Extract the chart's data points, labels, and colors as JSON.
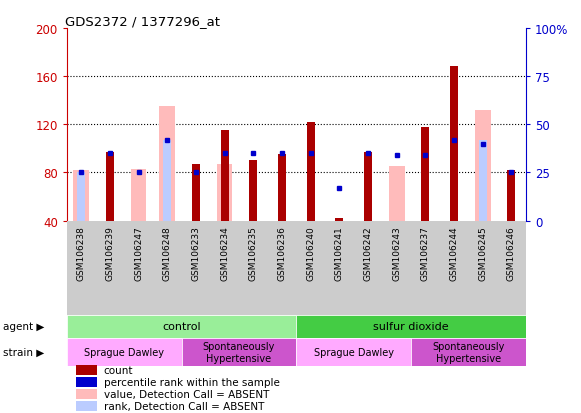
{
  "title": "GDS2372 / 1377296_at",
  "samples": [
    "GSM106238",
    "GSM106239",
    "GSM106247",
    "GSM106248",
    "GSM106233",
    "GSM106234",
    "GSM106235",
    "GSM106236",
    "GSM106240",
    "GSM106241",
    "GSM106242",
    "GSM106243",
    "GSM106237",
    "GSM106244",
    "GSM106245",
    "GSM106246"
  ],
  "count_values": [
    null,
    97,
    null,
    null,
    87,
    115,
    90,
    95,
    122,
    42,
    97,
    null,
    118,
    168,
    null,
    82
  ],
  "absent_values": [
    82,
    null,
    83,
    135,
    null,
    87,
    null,
    null,
    null,
    null,
    null,
    85,
    null,
    null,
    132,
    null
  ],
  "percentile_values": [
    25,
    35,
    25,
    42,
    25,
    35,
    35,
    35,
    35,
    17,
    35,
    34,
    34,
    42,
    40,
    25
  ],
  "absent_rank_values": [
    25,
    null,
    null,
    42,
    null,
    null,
    null,
    null,
    null,
    null,
    null,
    null,
    null,
    null,
    42,
    null
  ],
  "ylim_left": [
    40,
    200
  ],
  "ylim_right": [
    0,
    100
  ],
  "yticks_left": [
    40,
    80,
    120,
    160,
    200
  ],
  "yticks_right": [
    0,
    25,
    50,
    75,
    100
  ],
  "color_count": "#aa0000",
  "color_absent": "#ffbbbb",
  "color_percentile": "#0000cc",
  "color_absent_rank": "#bbccff",
  "color_axis_left": "#cc0000",
  "color_axis_right": "#0000cc",
  "color_xticklabel_bg": "#cccccc",
  "agent_groups": [
    {
      "label": "control",
      "start": 0,
      "end": 8,
      "color": "#99ee99"
    },
    {
      "label": "sulfur dioxide",
      "start": 8,
      "end": 16,
      "color": "#44cc44"
    }
  ],
  "strain_groups": [
    {
      "label": "Sprague Dawley",
      "start": 0,
      "end": 4,
      "color": "#ffaaff"
    },
    {
      "label": "Spontaneously\nHypertensive",
      "start": 4,
      "end": 8,
      "color": "#cc55cc"
    },
    {
      "label": "Sprague Dawley",
      "start": 8,
      "end": 12,
      "color": "#ffaaff"
    },
    {
      "label": "Spontaneously\nHypertensive",
      "start": 12,
      "end": 16,
      "color": "#cc55cc"
    }
  ],
  "legend_items": [
    {
      "label": "count",
      "color": "#aa0000"
    },
    {
      "label": "percentile rank within the sample",
      "color": "#0000cc"
    },
    {
      "label": "value, Detection Call = ABSENT",
      "color": "#ffbbbb"
    },
    {
      "label": "rank, Detection Call = ABSENT",
      "color": "#bbccff"
    }
  ],
  "bg_color": "#ffffff"
}
